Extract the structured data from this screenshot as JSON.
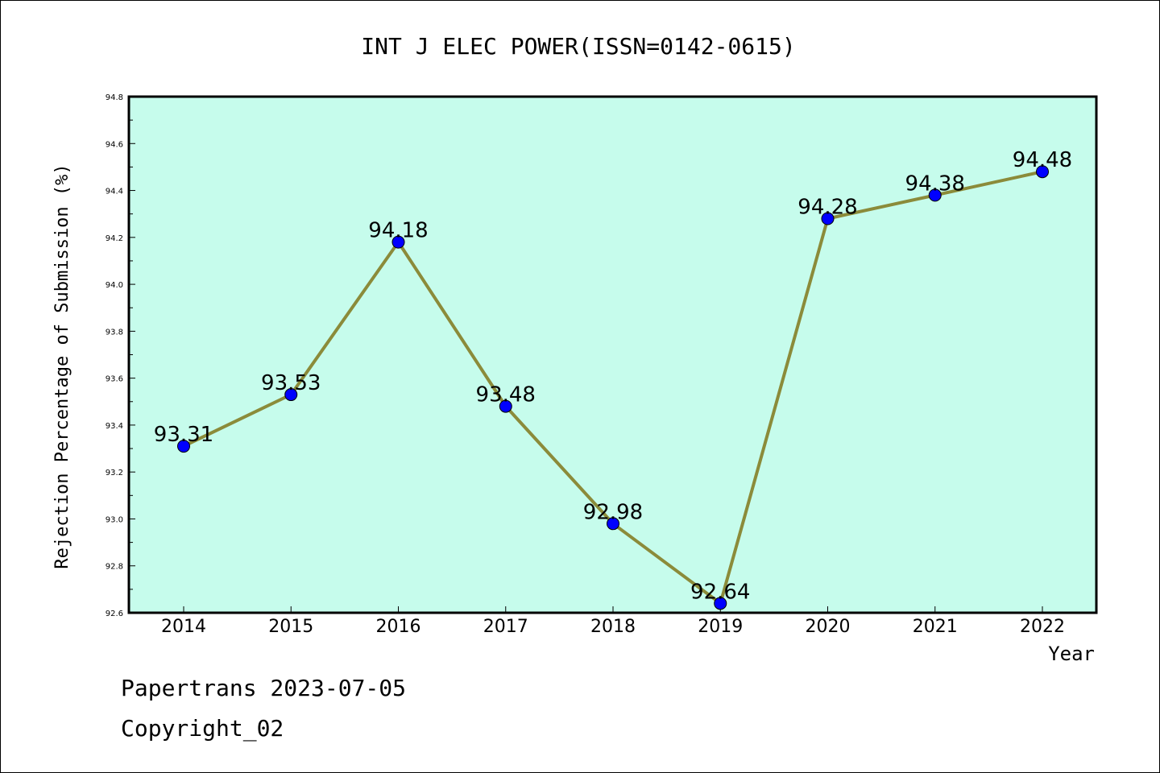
{
  "chart_data": {
    "type": "line",
    "title": "INT J ELEC POWER(ISSN=0142-0615)",
    "xlabel": "Year",
    "ylabel": "Rejection Percentage of Submission (%)",
    "categories": [
      "2014",
      "2015",
      "2016",
      "2017",
      "2018",
      "2019",
      "2020",
      "2021",
      "2022"
    ],
    "values": [
      93.31,
      93.53,
      94.18,
      93.48,
      92.98,
      92.64,
      94.28,
      94.38,
      94.48
    ],
    "data_labels": [
      "93.31",
      "93.53",
      "94.18",
      "93.48",
      "92.98",
      "92.64",
      "94.28",
      "94.38",
      "94.48"
    ],
    "ylim": [
      92.6,
      94.8
    ],
    "yticks": [
      "92.6",
      "92.8",
      "93.0",
      "93.2",
      "93.4",
      "93.6",
      "93.8",
      "94.0",
      "94.2",
      "94.4",
      "94.6",
      "94.8"
    ],
    "grid": false,
    "colors": {
      "plot_background": "#c6fcec",
      "line": "#8b8b3a",
      "marker": "#0000ff"
    }
  },
  "footer": {
    "line1": "Papertrans 2023-07-05",
    "line2": "Copyright_02"
  }
}
